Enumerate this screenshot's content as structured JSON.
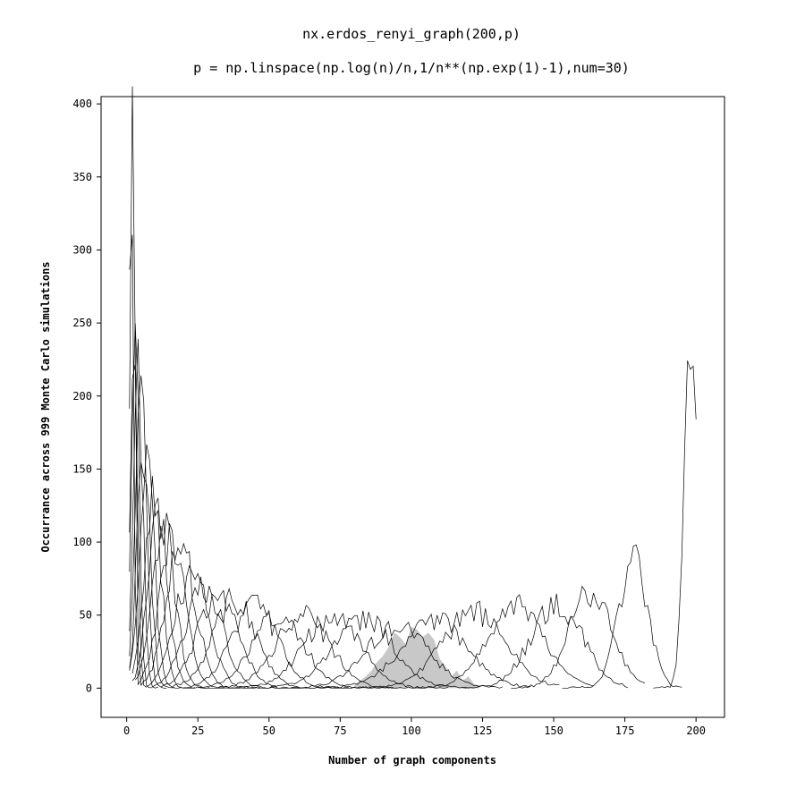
{
  "chart_data": {
    "type": "line",
    "title": "nx.erdos_renyi_graph(200,p)",
    "subtitle": "p = np.linspace(np.log(n)/n,1/n**(np.exp(1)-1),num=30)",
    "xlabel": "Number of graph components",
    "ylabel": "Occurrance across 999 Monte Carlo simulations",
    "xlim": [
      -9,
      210
    ],
    "ylim": [
      -20,
      405
    ],
    "xticks": [
      0,
      25,
      50,
      75,
      100,
      125,
      150,
      175,
      200
    ],
    "yticks": [
      0,
      50,
      100,
      150,
      200,
      250,
      300,
      350,
      400
    ],
    "grid": false,
    "colors": {
      "line": "#000000",
      "highlight_fill": "#c8c8c8"
    },
    "series": [
      {
        "peak_x": 1.5,
        "peak_y": 383,
        "spread": 0.8,
        "x_start": 1,
        "x_end": 4
      },
      {
        "peak_x": 2,
        "peak_y": 380,
        "spread": 0.9,
        "x_start": 1,
        "x_end": 5
      },
      {
        "peak_x": 2.5,
        "peak_y": 282,
        "spread": 1.1,
        "x_start": 1,
        "x_end": 7
      },
      {
        "peak_x": 3,
        "peak_y": 265,
        "spread": 1.3,
        "x_start": 1,
        "x_end": 9
      },
      {
        "peak_x": 4,
        "peak_y": 225,
        "spread": 1.6,
        "x_start": 1,
        "x_end": 11
      },
      {
        "peak_x": 5,
        "peak_y": 195,
        "spread": 1.9,
        "x_start": 1,
        "x_end": 14
      },
      {
        "peak_x": 6,
        "peak_y": 170,
        "spread": 2.2,
        "x_start": 1,
        "x_end": 17
      },
      {
        "peak_x": 7,
        "peak_y": 160,
        "spread": 2.6,
        "x_start": 1,
        "x_end": 20
      },
      {
        "peak_x": 9,
        "peak_y": 137,
        "spread": 3.0,
        "x_start": 2,
        "x_end": 24
      },
      {
        "peak_x": 11,
        "peak_y": 120,
        "spread": 3.5,
        "x_start": 2,
        "x_end": 29
      },
      {
        "peak_x": 13,
        "peak_y": 108,
        "spread": 4.0,
        "x_start": 3,
        "x_end": 34
      },
      {
        "peak_x": 16,
        "peak_y": 100,
        "spread": 4.6,
        "x_start": 4,
        "x_end": 40
      },
      {
        "peak_x": 19,
        "peak_y": 95,
        "spread": 5.2,
        "x_start": 5,
        "x_end": 47
      },
      {
        "peak_x": 23,
        "peak_y": 80,
        "spread": 5.8,
        "x_start": 7,
        "x_end": 54
      },
      {
        "peak_x": 27,
        "peak_y": 72,
        "spread": 6.4,
        "x_start": 9,
        "x_end": 62
      },
      {
        "peak_x": 32,
        "peak_y": 65,
        "spread": 7.0,
        "x_start": 12,
        "x_end": 70
      },
      {
        "peak_x": 38,
        "peak_y": 60,
        "spread": 7.6,
        "x_start": 16,
        "x_end": 78
      },
      {
        "peak_x": 45,
        "peak_y": 55,
        "spread": 8.2,
        "x_start": 20,
        "x_end": 86
      },
      {
        "peak_x": 53,
        "peak_y": 52,
        "spread": 8.8,
        "x_start": 25,
        "x_end": 95
      },
      {
        "peak_x": 62,
        "peak_y": 50,
        "spread": 9.4,
        "x_start": 32,
        "x_end": 104
      },
      {
        "peak_x": 72,
        "peak_y": 48,
        "spread": 10.0,
        "x_start": 40,
        "x_end": 113
      },
      {
        "peak_x": 83,
        "peak_y": 47,
        "spread": 10.5,
        "x_start": 48,
        "x_end": 122
      },
      {
        "peak_x": 95,
        "peak_y": 42,
        "spread": 11.0,
        "x_start": 58,
        "x_end": 132
      },
      {
        "peak_x": 108,
        "peak_y": 47,
        "spread": 11.5,
        "x_start": 70,
        "x_end": 142
      },
      {
        "peak_x": 122,
        "peak_y": 52,
        "spread": 11.0,
        "x_start": 85,
        "x_end": 152
      },
      {
        "peak_x": 137,
        "peak_y": 55,
        "spread": 10.0,
        "x_start": 102,
        "x_end": 164
      },
      {
        "peak_x": 151,
        "peak_y": 58,
        "spread": 9.0,
        "x_start": 118,
        "x_end": 176
      },
      {
        "peak_x": 163,
        "peak_y": 65,
        "spread": 7.5,
        "x_start": 135,
        "x_end": 182
      },
      {
        "peak_x": 178,
        "peak_y": 92,
        "spread": 5.0,
        "x_start": 153,
        "x_end": 195
      },
      {
        "peak_x": 198,
        "peak_y": 251,
        "spread": 2.2,
        "x_start": 185,
        "x_end": 200
      }
    ],
    "highlighted_series": {
      "x": [
        80,
        82,
        84,
        86,
        88,
        90,
        92,
        94,
        96,
        98,
        100,
        102,
        104,
        106,
        108,
        110,
        112,
        114,
        116,
        118,
        120,
        122,
        124
      ],
      "values": [
        2,
        5,
        8,
        12,
        18,
        22,
        28,
        38,
        35,
        30,
        42,
        40,
        35,
        38,
        33,
        20,
        15,
        8,
        12,
        5,
        8,
        3,
        1
      ]
    }
  }
}
